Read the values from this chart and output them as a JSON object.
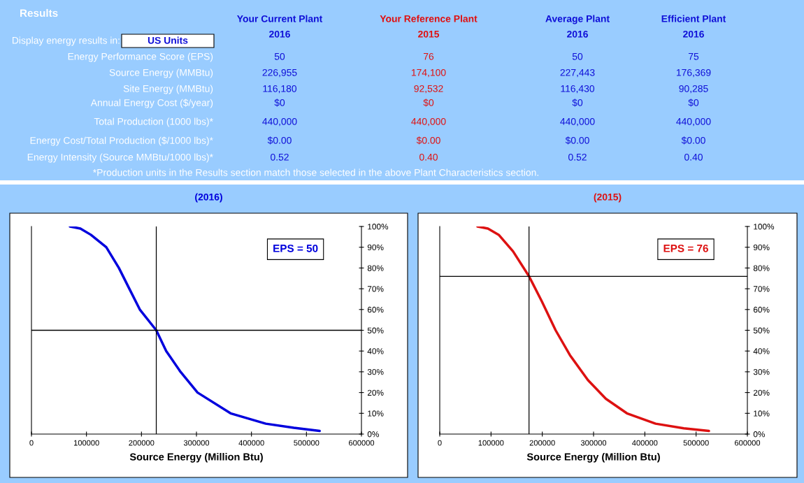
{
  "chart_data": [
    {
      "type": "other",
      "title": "Results",
      "categories": [
        "Your Current Plant\n2016",
        "Your Reference Plant\n2015",
        "Average Plant\n2016",
        "Efficient Plant\n2016"
      ],
      "colors": [
        "#1010d8",
        "#e01010",
        "#1010d8",
        "#1010d8"
      ],
      "y_categories": [
        "Energy Performance Score (EPS)",
        "Source Energy (MMBtu)",
        "Site Energy (MMBtu)",
        "Annual Energy Cost ($/year)",
        "Total Production (1000 lbs)*",
        "Energy Cost/Total Production ($/1000 lbs)*",
        "Energy Intensity (Source MMBtu/1000 lbs)*"
      ],
      "cell_labels": [
        [
          "50",
          "76",
          "50",
          "75"
        ],
        [
          "226,955",
          "174,100",
          "227,443",
          "176,369"
        ],
        [
          "116,180",
          "92,532",
          "116,430",
          "90,285"
        ],
        [
          "$0",
          "$0",
          "$0",
          "$0"
        ],
        [
          "440,000",
          "440,000",
          "440,000",
          "440,000"
        ],
        [
          "$0.00",
          "$0.00",
          "$0.00",
          "$0.00"
        ],
        [
          "0.52",
          "0.40",
          "0.52",
          "0.40"
        ]
      ],
      "annotations": [
        "Display energy results in:",
        "US Units",
        "*Production units in the Results section match those selected in the above Plant Characteristics section."
      ]
    },
    {
      "type": "line",
      "title": "(2016)",
      "xlabel": "Source Energy (Million Btu)",
      "series": [
        {
          "color": "#0000dd",
          "x": [
            70000,
            89000,
            108000,
            136000,
            159000,
            178000,
            197000,
            226955,
            245000,
            271000,
            302000,
            362000,
            426000,
            477000,
            524000
          ],
          "values": [
            100,
            99,
            96,
            90,
            80,
            70,
            60,
            50,
            40,
            30,
            20,
            10,
            5,
            3,
            1.5
          ]
        }
      ],
      "ref_lines": [
        {
          "axis": "x",
          "value": 226955,
          "color": "#000000"
        },
        {
          "axis": "y",
          "value": 50,
          "color": "#000000"
        }
      ],
      "annotations": [
        "EPS = 50"
      ],
      "xlim": [
        0,
        600000
      ],
      "xticks": [
        0,
        100000,
        200000,
        300000,
        400000,
        500000,
        600000
      ],
      "ylim": [
        0,
        100
      ],
      "yticks": [
        {
          "value": 0,
          "label": "0%"
        },
        {
          "value": 10,
          "label": "10%"
        },
        {
          "value": 20,
          "label": "20%"
        },
        {
          "value": 30,
          "label": "30%"
        },
        {
          "value": 40,
          "label": "40%"
        },
        {
          "value": 50,
          "label": "50%"
        },
        {
          "value": 60,
          "label": "60%"
        },
        {
          "value": 70,
          "label": "70%"
        },
        {
          "value": 80,
          "label": "80%"
        },
        {
          "value": 90,
          "label": "90%"
        },
        {
          "value": 100,
          "label": "100%"
        }
      ],
      "grid": false,
      "legend": false,
      "marker": "none",
      "line_style": "solid"
    },
    {
      "type": "line",
      "title": "(2015)",
      "xlabel": "Source Energy (Million Btu)",
      "series": [
        {
          "color": "#dd1111",
          "x": [
            73600,
            94000,
            115000,
            143000,
            174100,
            199000,
            226000,
            254000,
            289000,
            324000,
            365000,
            421000,
            476000,
            525000
          ],
          "values": [
            100,
            99,
            96,
            88,
            76,
            64,
            50,
            38,
            26,
            17,
            10,
            5,
            2.8,
            1.5
          ]
        }
      ],
      "ref_lines": [
        {
          "axis": "x",
          "value": 174100,
          "color": "#000000"
        },
        {
          "axis": "y",
          "value": 76,
          "color": "#000000"
        }
      ],
      "annotations": [
        "EPS = 76"
      ],
      "xlim": [
        0,
        600000
      ],
      "xticks": [
        0,
        100000,
        200000,
        300000,
        400000,
        500000,
        600000
      ],
      "ylim": [
        0,
        100
      ],
      "yticks": [
        {
          "value": 0,
          "label": "0%"
        },
        {
          "value": 10,
          "label": "10%"
        },
        {
          "value": 20,
          "label": "20%"
        },
        {
          "value": 30,
          "label": "30%"
        },
        {
          "value": 40,
          "label": "40%"
        },
        {
          "value": 50,
          "label": "50%"
        },
        {
          "value": 60,
          "label": "60%"
        },
        {
          "value": 70,
          "label": "70%"
        },
        {
          "value": 80,
          "label": "80%"
        },
        {
          "value": 90,
          "label": "90%"
        },
        {
          "value": 100,
          "label": "100%"
        }
      ],
      "grid": false,
      "legend": false,
      "marker": "none",
      "line_style": "solid"
    }
  ]
}
